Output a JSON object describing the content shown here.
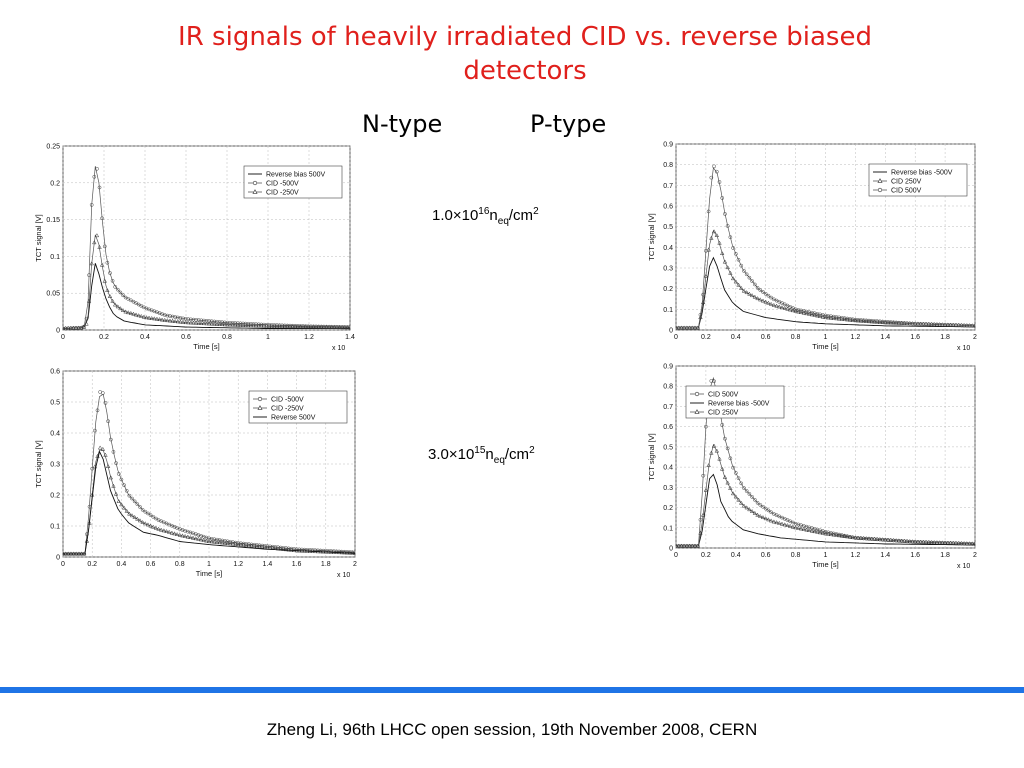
{
  "slide": {
    "title_line1": "IR signals of heavily irradiated CID vs. reverse biased",
    "title_line2": "detectors",
    "n_type_label": "N-type",
    "p_type_label": "P-type",
    "fluence1": {
      "mant": "1.0×10",
      "exp": "16",
      "unit_base": "n",
      "unit_sub": "eq",
      "unit_rest": "/cm",
      "unit_sup": "2"
    },
    "fluence2": {
      "mant": "3.0×10",
      "exp": "15",
      "unit_base": "n",
      "unit_sub": "eq",
      "unit_rest": "/cm",
      "unit_sup": "2"
    },
    "footer": "Zheng Li, 96th LHCC open session, 19th November 2008, CERN",
    "colors": {
      "title": "#e0201c",
      "rule": "#1f74e6"
    }
  },
  "chart_data": [
    {
      "id": "n-top",
      "type": "line",
      "xlabel": "Time [s]",
      "ylabel": "TCT signal [V]",
      "x_multiplier": "x 10",
      "xlim": [
        0,
        1.4
      ],
      "ylim": [
        0,
        0.25
      ],
      "xticks": [
        "0",
        "0.2",
        "0.4",
        "0.6",
        "0.8",
        "1",
        "1.2",
        "1.4"
      ],
      "yticks": [
        "0",
        "0.05",
        "0.1",
        "0.15",
        "0.2",
        "0.25"
      ],
      "grid": true,
      "legend": "top-right",
      "series": [
        {
          "name": "Reverse bias 500V",
          "marker": "none",
          "points": [
            [
              0,
              0.002
            ],
            [
              0.1,
              0.003
            ],
            [
              0.12,
              0.01
            ],
            [
              0.14,
              0.06
            ],
            [
              0.16,
              0.095
            ],
            [
              0.18,
              0.07
            ],
            [
              0.2,
              0.05
            ],
            [
              0.22,
              0.035
            ],
            [
              0.25,
              0.02
            ],
            [
              0.3,
              0.012
            ],
            [
              0.4,
              0.007
            ],
            [
              0.6,
              0.004
            ],
            [
              0.8,
              0.003
            ],
            [
              1.0,
              0.002
            ],
            [
              1.4,
              0.002
            ]
          ]
        },
        {
          "name": "CID -500V",
          "marker": "circle",
          "points": [
            [
              0,
              0.002
            ],
            [
              0.1,
              0.003
            ],
            [
              0.12,
              0.02
            ],
            [
              0.14,
              0.17
            ],
            [
              0.16,
              0.23
            ],
            [
              0.18,
              0.19
            ],
            [
              0.2,
              0.12
            ],
            [
              0.22,
              0.085
            ],
            [
              0.25,
              0.06
            ],
            [
              0.3,
              0.045
            ],
            [
              0.4,
              0.03
            ],
            [
              0.5,
              0.02
            ],
            [
              0.6,
              0.015
            ],
            [
              0.8,
              0.01
            ],
            [
              1.0,
              0.007
            ],
            [
              1.2,
              0.005
            ],
            [
              1.4,
              0.004
            ]
          ]
        },
        {
          "name": "CID -250V",
          "marker": "triangle",
          "points": [
            [
              0,
              0.002
            ],
            [
              0.1,
              0.003
            ],
            [
              0.12,
              0.01
            ],
            [
              0.14,
              0.09
            ],
            [
              0.16,
              0.135
            ],
            [
              0.18,
              0.11
            ],
            [
              0.2,
              0.07
            ],
            [
              0.22,
              0.05
            ],
            [
              0.25,
              0.035
            ],
            [
              0.3,
              0.025
            ],
            [
              0.4,
              0.017
            ],
            [
              0.5,
              0.013
            ],
            [
              0.6,
              0.01
            ],
            [
              0.8,
              0.007
            ],
            [
              1.0,
              0.005
            ],
            [
              1.2,
              0.004
            ],
            [
              1.4,
              0.003
            ]
          ]
        }
      ]
    },
    {
      "id": "p-top",
      "type": "line",
      "xlabel": "Time [s]",
      "ylabel": "TCT signal [V]",
      "x_multiplier": "x 10",
      "xlim": [
        0,
        2
      ],
      "ylim": [
        0,
        0.9
      ],
      "xticks": [
        "0",
        "0.2",
        "0.4",
        "0.6",
        "0.8",
        "1",
        "1.2",
        "1.4",
        "1.6",
        "1.8",
        "2"
      ],
      "yticks": [
        "0",
        "0.1",
        "0.2",
        "0.3",
        "0.4",
        "0.5",
        "0.6",
        "0.7",
        "0.8",
        "0.9"
      ],
      "grid": true,
      "legend": "top-right",
      "series": [
        {
          "name": "Reverse bias -500V",
          "marker": "none",
          "points": [
            [
              0,
              0.01
            ],
            [
              0.15,
              0.01
            ],
            [
              0.18,
              0.1
            ],
            [
              0.22,
              0.3
            ],
            [
              0.25,
              0.35
            ],
            [
              0.28,
              0.3
            ],
            [
              0.32,
              0.2
            ],
            [
              0.38,
              0.13
            ],
            [
              0.45,
              0.09
            ],
            [
              0.6,
              0.06
            ],
            [
              0.8,
              0.04
            ],
            [
              1.0,
              0.03
            ],
            [
              1.4,
              0.02
            ],
            [
              2.0,
              0.015
            ]
          ]
        },
        {
          "name": "CID 250V",
          "marker": "triangle",
          "points": [
            [
              0,
              0.01
            ],
            [
              0.15,
              0.01
            ],
            [
              0.18,
              0.12
            ],
            [
              0.22,
              0.4
            ],
            [
              0.25,
              0.48
            ],
            [
              0.28,
              0.45
            ],
            [
              0.32,
              0.34
            ],
            [
              0.38,
              0.25
            ],
            [
              0.45,
              0.19
            ],
            [
              0.55,
              0.15
            ],
            [
              0.65,
              0.12
            ],
            [
              0.8,
              0.09
            ],
            [
              1.0,
              0.06
            ],
            [
              1.2,
              0.045
            ],
            [
              1.4,
              0.035
            ],
            [
              1.6,
              0.03
            ],
            [
              2.0,
              0.02
            ]
          ]
        },
        {
          "name": "CID 500V",
          "marker": "circle",
          "points": [
            [
              0,
              0.01
            ],
            [
              0.15,
              0.01
            ],
            [
              0.18,
              0.15
            ],
            [
              0.21,
              0.5
            ],
            [
              0.24,
              0.77
            ],
            [
              0.26,
              0.8
            ],
            [
              0.29,
              0.72
            ],
            [
              0.33,
              0.55
            ],
            [
              0.38,
              0.4
            ],
            [
              0.45,
              0.29
            ],
            [
              0.55,
              0.2
            ],
            [
              0.65,
              0.15
            ],
            [
              0.8,
              0.1
            ],
            [
              1.0,
              0.07
            ],
            [
              1.2,
              0.05
            ],
            [
              1.4,
              0.04
            ],
            [
              1.6,
              0.03
            ],
            [
              2.0,
              0.02
            ]
          ]
        }
      ]
    },
    {
      "id": "n-bottom",
      "type": "line",
      "xlabel": "Time [s]",
      "ylabel": "TCT signal [V]",
      "x_multiplier": "x 10",
      "xlim": [
        0,
        2
      ],
      "ylim": [
        0,
        0.6
      ],
      "xticks": [
        "0",
        "0.2",
        "0.4",
        "0.6",
        "0.8",
        "1",
        "1.2",
        "1.4",
        "1.6",
        "1.8",
        "2"
      ],
      "yticks": [
        "0",
        "0.1",
        "0.2",
        "0.3",
        "0.4",
        "0.5",
        "0.6"
      ],
      "grid": true,
      "legend": "top-right",
      "series": [
        {
          "name": "CID -500V",
          "marker": "circle",
          "points": [
            [
              0,
              0.01
            ],
            [
              0.15,
              0.01
            ],
            [
              0.18,
              0.15
            ],
            [
              0.22,
              0.42
            ],
            [
              0.26,
              0.55
            ],
            [
              0.29,
              0.5
            ],
            [
              0.33,
              0.37
            ],
            [
              0.38,
              0.27
            ],
            [
              0.45,
              0.2
            ],
            [
              0.55,
              0.15
            ],
            [
              0.65,
              0.12
            ],
            [
              0.8,
              0.09
            ],
            [
              1.0,
              0.06
            ],
            [
              1.2,
              0.045
            ],
            [
              1.4,
              0.035
            ],
            [
              1.6,
              0.025
            ],
            [
              2.0,
              0.015
            ]
          ]
        },
        {
          "name": "CID -250V",
          "marker": "triangle",
          "points": [
            [
              0,
              0.01
            ],
            [
              0.15,
              0.01
            ],
            [
              0.18,
              0.1
            ],
            [
              0.22,
              0.3
            ],
            [
              0.26,
              0.36
            ],
            [
              0.29,
              0.33
            ],
            [
              0.33,
              0.25
            ],
            [
              0.38,
              0.18
            ],
            [
              0.45,
              0.14
            ],
            [
              0.55,
              0.11
            ],
            [
              0.65,
              0.09
            ],
            [
              0.8,
              0.07
            ],
            [
              1.0,
              0.05
            ],
            [
              1.2,
              0.04
            ],
            [
              1.4,
              0.03
            ],
            [
              1.6,
              0.02
            ],
            [
              2.0,
              0.012
            ]
          ]
        },
        {
          "name": "Reverse 500V",
          "marker": "none",
          "points": [
            [
              0,
              0.01
            ],
            [
              0.15,
              0.01
            ],
            [
              0.18,
              0.1
            ],
            [
              0.22,
              0.28
            ],
            [
              0.25,
              0.34
            ],
            [
              0.28,
              0.31
            ],
            [
              0.32,
              0.22
            ],
            [
              0.38,
              0.15
            ],
            [
              0.45,
              0.11
            ],
            [
              0.55,
              0.08
            ],
            [
              0.65,
              0.07
            ],
            [
              0.8,
              0.05
            ],
            [
              1.0,
              0.04
            ],
            [
              1.4,
              0.025
            ],
            [
              2.0,
              0.012
            ]
          ]
        }
      ]
    },
    {
      "id": "p-bottom",
      "type": "line",
      "xlabel": "Time [s]",
      "ylabel": "TCT signal [V]",
      "x_multiplier": "x 10",
      "xlim": [
        0,
        2
      ],
      "ylim": [
        0,
        0.9
      ],
      "xticks": [
        "0",
        "0.2",
        "0.4",
        "0.6",
        "0.8",
        "1",
        "1.2",
        "1.4",
        "1.6",
        "1.8",
        "2"
      ],
      "yticks": [
        "0",
        "0.1",
        "0.2",
        "0.3",
        "0.4",
        "0.5",
        "0.6",
        "0.7",
        "0.8",
        "0.9"
      ],
      "grid": true,
      "legend": "top-left",
      "series": [
        {
          "name": "CID 500V",
          "marker": "circle",
          "points": [
            [
              0,
              0.01
            ],
            [
              0.15,
              0.01
            ],
            [
              0.17,
              0.2
            ],
            [
              0.2,
              0.6
            ],
            [
              0.23,
              0.82
            ],
            [
              0.25,
              0.84
            ],
            [
              0.28,
              0.74
            ],
            [
              0.32,
              0.56
            ],
            [
              0.38,
              0.4
            ],
            [
              0.45,
              0.3
            ],
            [
              0.55,
              0.22
            ],
            [
              0.65,
              0.17
            ],
            [
              0.8,
              0.12
            ],
            [
              1.0,
              0.08
            ],
            [
              1.2,
              0.05
            ],
            [
              1.4,
              0.04
            ],
            [
              1.6,
              0.03
            ],
            [
              2.0,
              0.02
            ]
          ]
        },
        {
          "name": "Reverse bias -500V",
          "marker": "none",
          "points": [
            [
              0,
              0.01
            ],
            [
              0.15,
              0.01
            ],
            [
              0.18,
              0.1
            ],
            [
              0.22,
              0.33
            ],
            [
              0.24,
              0.38
            ],
            [
              0.27,
              0.33
            ],
            [
              0.3,
              0.23
            ],
            [
              0.36,
              0.14
            ],
            [
              0.45,
              0.09
            ],
            [
              0.55,
              0.07
            ],
            [
              0.7,
              0.05
            ],
            [
              1.0,
              0.03
            ],
            [
              1.4,
              0.02
            ],
            [
              2.0,
              0.015
            ]
          ]
        },
        {
          "name": "CID 250V",
          "marker": "triangle",
          "points": [
            [
              0,
              0.01
            ],
            [
              0.15,
              0.01
            ],
            [
              0.18,
              0.15
            ],
            [
              0.22,
              0.42
            ],
            [
              0.25,
              0.51
            ],
            [
              0.28,
              0.47
            ],
            [
              0.32,
              0.36
            ],
            [
              0.38,
              0.27
            ],
            [
              0.45,
              0.21
            ],
            [
              0.55,
              0.16
            ],
            [
              0.65,
              0.13
            ],
            [
              0.8,
              0.1
            ],
            [
              1.0,
              0.07
            ],
            [
              1.2,
              0.05
            ],
            [
              1.4,
              0.04
            ],
            [
              1.6,
              0.03
            ],
            [
              2.0,
              0.02
            ]
          ]
        }
      ]
    }
  ]
}
